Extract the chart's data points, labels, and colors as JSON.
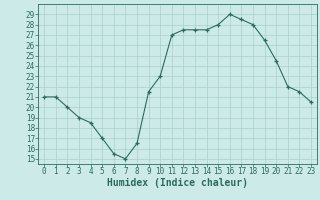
{
  "x": [
    0,
    1,
    2,
    3,
    4,
    5,
    6,
    7,
    8,
    9,
    10,
    11,
    12,
    13,
    14,
    15,
    16,
    17,
    18,
    19,
    20,
    21,
    22,
    23
  ],
  "y": [
    21,
    21,
    20,
    19,
    18.5,
    17,
    15.5,
    15,
    16.5,
    21.5,
    23,
    27,
    27.5,
    27.5,
    27.5,
    28,
    29,
    28.5,
    28,
    26.5,
    24.5,
    22,
    21.5,
    20.5
  ],
  "line_color": "#2e6b5e",
  "marker": "+",
  "bg_color": "#cceae8",
  "grid_color": "#aacfcc",
  "xlabel": "Humidex (Indice chaleur)",
  "ylabel_ticks": [
    15,
    16,
    17,
    18,
    19,
    20,
    21,
    22,
    23,
    24,
    25,
    26,
    27,
    28,
    29
  ],
  "ylim": [
    14.5,
    30
  ],
  "xlim": [
    -0.5,
    23.5
  ],
  "tick_fontsize": 5.5,
  "xlabel_fontsize": 7.0
}
